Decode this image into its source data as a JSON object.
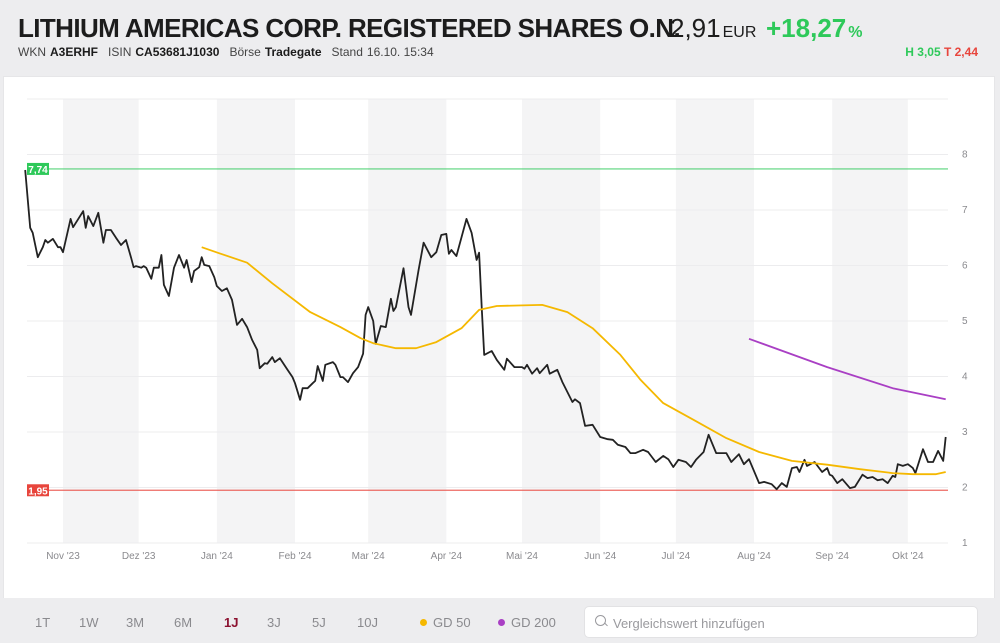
{
  "header": {
    "title": "LITHIUM AMERICAS CORP. REGISTERED SHARES O.N.",
    "price": "2,91",
    "currency": "EUR",
    "change": "+18,27",
    "change_unit": "%",
    "wkn_label": "WKN",
    "wkn": "A3ERHF",
    "isin_label": "ISIN",
    "isin": "CA53681J1030",
    "exchange_label": "Börse",
    "exchange": "Tradegate",
    "timestamp_label": "Stand",
    "timestamp": "16.10. 15:34",
    "high": "H 3,05",
    "low": "T 2,44"
  },
  "colors": {
    "up": "#2ec95a",
    "down": "#e8453c",
    "price_line": "#222222",
    "gd50": "#f5b800",
    "gd200": "#a93fc4",
    "active_range": "#8c1230"
  },
  "chart_data": {
    "type": "line",
    "x_type": "date",
    "xlim": [
      "2023-10-16",
      "2024-10-16"
    ],
    "ylim": [
      1,
      9
    ],
    "y_ticks": [
      "1",
      "2",
      "3",
      "4",
      "5",
      "6",
      "7",
      "8"
    ],
    "x_ticks": [
      {
        "date": "2023-11-01",
        "label": "Nov '23"
      },
      {
        "date": "2023-12-01",
        "label": "Dez '23"
      },
      {
        "date": "2024-01-01",
        "label": "Jan '24"
      },
      {
        "date": "2024-02-01",
        "label": "Feb '24"
      },
      {
        "date": "2024-03-01",
        "label": "Mar '24"
      },
      {
        "date": "2024-04-01",
        "label": "Apr '24"
      },
      {
        "date": "2024-05-01",
        "label": "Mai '24"
      },
      {
        "date": "2024-06-01",
        "label": "Jun '24"
      },
      {
        "date": "2024-07-01",
        "label": "Jul '24"
      },
      {
        "date": "2024-08-01",
        "label": "Aug '24"
      },
      {
        "date": "2024-09-01",
        "label": "Sep '24"
      },
      {
        "date": "2024-10-01",
        "label": "Okt '24"
      }
    ],
    "grid": true,
    "max_marker": {
      "value": 7.74,
      "label": "7,74"
    },
    "min_marker": {
      "value": 1.95,
      "label": "1,95"
    },
    "series": [
      {
        "key": "price",
        "points": [
          [
            "2023-10-17",
            7.72
          ],
          [
            "2023-10-19",
            6.68
          ],
          [
            "2023-10-20",
            6.59
          ],
          [
            "2023-10-22",
            6.15
          ],
          [
            "2023-10-24",
            6.33
          ],
          [
            "2023-10-25",
            6.46
          ],
          [
            "2023-10-26",
            6.41
          ],
          [
            "2023-10-28",
            6.48
          ],
          [
            "2023-10-30",
            6.33
          ],
          [
            "2023-10-31",
            6.33
          ],
          [
            "2023-11-01",
            6.24
          ],
          [
            "2023-11-04",
            6.84
          ],
          [
            "2023-11-05",
            6.69
          ],
          [
            "2023-11-09",
            6.98
          ],
          [
            "2023-11-10",
            6.68
          ],
          [
            "2023-11-11",
            6.89
          ],
          [
            "2023-11-13",
            6.71
          ],
          [
            "2023-11-15",
            6.95
          ],
          [
            "2023-11-17",
            6.41
          ],
          [
            "2023-11-18",
            6.64
          ],
          [
            "2023-11-20",
            6.64
          ],
          [
            "2023-11-22",
            6.5
          ],
          [
            "2023-11-24",
            6.37
          ],
          [
            "2023-11-26",
            6.46
          ],
          [
            "2023-11-28",
            6.14
          ],
          [
            "2023-11-29",
            5.97
          ],
          [
            "2023-11-30",
            5.99
          ],
          [
            "2023-12-02",
            5.96
          ],
          [
            "2023-12-03",
            5.99
          ],
          [
            "2023-12-04",
            5.96
          ],
          [
            "2023-12-06",
            5.76
          ],
          [
            "2023-12-07",
            5.96
          ],
          [
            "2023-12-09",
            5.96
          ],
          [
            "2023-12-10",
            6.19
          ],
          [
            "2023-12-11",
            5.65
          ],
          [
            "2023-12-13",
            5.45
          ],
          [
            "2023-12-15",
            5.96
          ],
          [
            "2023-12-17",
            6.19
          ],
          [
            "2023-12-19",
            5.96
          ],
          [
            "2023-12-20",
            6.1
          ],
          [
            "2023-12-22",
            5.7
          ],
          [
            "2023-12-23",
            5.9
          ],
          [
            "2023-12-25",
            5.97
          ],
          [
            "2023-12-26",
            6.15
          ],
          [
            "2023-12-27",
            6.01
          ],
          [
            "2023-12-29",
            5.99
          ],
          [
            "2023-12-31",
            5.79
          ],
          [
            "2024-01-01",
            5.63
          ],
          [
            "2024-01-03",
            5.54
          ],
          [
            "2024-01-05",
            5.59
          ],
          [
            "2024-01-07",
            5.38
          ],
          [
            "2024-01-09",
            4.93
          ],
          [
            "2024-01-11",
            5.04
          ],
          [
            "2024-01-13",
            4.89
          ],
          [
            "2024-01-15",
            4.66
          ],
          [
            "2024-01-17",
            4.48
          ],
          [
            "2024-01-18",
            4.15
          ],
          [
            "2024-01-20",
            4.24
          ],
          [
            "2024-01-21",
            4.23
          ],
          [
            "2024-01-23",
            4.35
          ],
          [
            "2024-01-24",
            4.26
          ],
          [
            "2024-01-26",
            4.33
          ],
          [
            "2024-01-29",
            4.12
          ],
          [
            "2024-01-31",
            3.99
          ],
          [
            "2024-02-01",
            3.88
          ],
          [
            "2024-02-03",
            3.58
          ],
          [
            "2024-02-04",
            3.79
          ],
          [
            "2024-02-06",
            3.79
          ],
          [
            "2024-02-08",
            3.88
          ],
          [
            "2024-02-09",
            3.92
          ],
          [
            "2024-02-10",
            4.19
          ],
          [
            "2024-02-12",
            3.92
          ],
          [
            "2024-02-13",
            4.21
          ],
          [
            "2024-02-16",
            4.26
          ],
          [
            "2024-02-17",
            4.21
          ],
          [
            "2024-02-19",
            3.99
          ],
          [
            "2024-02-20",
            3.99
          ],
          [
            "2024-02-22",
            3.9
          ],
          [
            "2024-02-24",
            4.06
          ],
          [
            "2024-02-26",
            4.17
          ],
          [
            "2024-02-28",
            4.41
          ],
          [
            "2024-02-29",
            5.11
          ],
          [
            "2024-03-01",
            5.25
          ],
          [
            "2024-03-03",
            5.0
          ],
          [
            "2024-03-04",
            4.59
          ],
          [
            "2024-03-06",
            4.91
          ],
          [
            "2024-03-08",
            4.89
          ],
          [
            "2024-03-10",
            5.4
          ],
          [
            "2024-03-11",
            5.18
          ],
          [
            "2024-03-12",
            5.25
          ],
          [
            "2024-03-15",
            5.95
          ],
          [
            "2024-03-17",
            5.25
          ],
          [
            "2024-03-18",
            5.11
          ],
          [
            "2024-03-21",
            5.92
          ],
          [
            "2024-03-23",
            6.41
          ],
          [
            "2024-03-26",
            6.15
          ],
          [
            "2024-03-28",
            6.24
          ],
          [
            "2024-03-30",
            6.55
          ],
          [
            "2024-04-01",
            6.57
          ],
          [
            "2024-04-02",
            6.21
          ],
          [
            "2024-04-03",
            6.28
          ],
          [
            "2024-04-05",
            6.17
          ],
          [
            "2024-04-09",
            6.84
          ],
          [
            "2024-04-11",
            6.59
          ],
          [
            "2024-04-13",
            6.1
          ],
          [
            "2024-04-14",
            6.23
          ],
          [
            "2024-04-15",
            5.25
          ],
          [
            "2024-04-16",
            4.39
          ],
          [
            "2024-04-19",
            4.46
          ],
          [
            "2024-04-21",
            4.3
          ],
          [
            "2024-04-24",
            4.12
          ],
          [
            "2024-04-25",
            4.32
          ],
          [
            "2024-04-28",
            4.17
          ],
          [
            "2024-05-01",
            4.17
          ],
          [
            "2024-05-02",
            4.14
          ],
          [
            "2024-05-03",
            4.21
          ],
          [
            "2024-05-05",
            4.05
          ],
          [
            "2024-05-07",
            4.15
          ],
          [
            "2024-05-08",
            4.06
          ],
          [
            "2024-05-11",
            4.21
          ],
          [
            "2024-05-12",
            4.05
          ],
          [
            "2024-05-15",
            4.12
          ],
          [
            "2024-05-17",
            3.9
          ],
          [
            "2024-05-21",
            3.54
          ],
          [
            "2024-05-22",
            3.59
          ],
          [
            "2024-05-24",
            3.52
          ],
          [
            "2024-05-26",
            3.11
          ],
          [
            "2024-05-29",
            3.13
          ],
          [
            "2024-06-01",
            2.91
          ],
          [
            "2024-06-04",
            2.87
          ],
          [
            "2024-06-06",
            2.86
          ],
          [
            "2024-06-08",
            2.77
          ],
          [
            "2024-06-11",
            2.73
          ],
          [
            "2024-06-13",
            2.62
          ],
          [
            "2024-06-15",
            2.62
          ],
          [
            "2024-06-18",
            2.68
          ],
          [
            "2024-06-20",
            2.64
          ],
          [
            "2024-06-23",
            2.46
          ],
          [
            "2024-06-26",
            2.57
          ],
          [
            "2024-06-28",
            2.51
          ],
          [
            "2024-06-30",
            2.37
          ],
          [
            "2024-07-02",
            2.5
          ],
          [
            "2024-07-05",
            2.46
          ],
          [
            "2024-07-07",
            2.37
          ],
          [
            "2024-07-09",
            2.5
          ],
          [
            "2024-07-12",
            2.64
          ],
          [
            "2024-07-14",
            2.95
          ],
          [
            "2024-07-17",
            2.62
          ],
          [
            "2024-07-21",
            2.62
          ],
          [
            "2024-07-23",
            2.46
          ],
          [
            "2024-07-26",
            2.6
          ],
          [
            "2024-07-28",
            2.42
          ],
          [
            "2024-07-30",
            2.51
          ],
          [
            "2024-08-03",
            2.08
          ],
          [
            "2024-08-05",
            2.1
          ],
          [
            "2024-08-08",
            2.06
          ],
          [
            "2024-08-10",
            1.97
          ],
          [
            "2024-08-12",
            2.08
          ],
          [
            "2024-08-14",
            2.01
          ],
          [
            "2024-08-16",
            2.35
          ],
          [
            "2024-08-18",
            2.37
          ],
          [
            "2024-08-19",
            2.28
          ],
          [
            "2024-08-21",
            2.5
          ],
          [
            "2024-08-22",
            2.39
          ],
          [
            "2024-08-25",
            2.46
          ],
          [
            "2024-08-28",
            2.28
          ],
          [
            "2024-08-30",
            2.35
          ],
          [
            "2024-08-31",
            2.23
          ],
          [
            "2024-09-01",
            2.21
          ],
          [
            "2024-09-03",
            2.08
          ],
          [
            "2024-09-05",
            2.15
          ],
          [
            "2024-09-08",
            1.99
          ],
          [
            "2024-09-10",
            2.01
          ],
          [
            "2024-09-13",
            2.23
          ],
          [
            "2024-09-15",
            2.17
          ],
          [
            "2024-09-17",
            2.19
          ],
          [
            "2024-09-19",
            2.13
          ],
          [
            "2024-09-21",
            2.15
          ],
          [
            "2024-09-23",
            2.08
          ],
          [
            "2024-09-25",
            2.21
          ],
          [
            "2024-09-26",
            2.19
          ],
          [
            "2024-09-27",
            2.42
          ],
          [
            "2024-09-29",
            2.39
          ],
          [
            "2024-10-01",
            2.42
          ],
          [
            "2024-10-03",
            2.35
          ],
          [
            "2024-10-04",
            2.26
          ],
          [
            "2024-10-07",
            2.69
          ],
          [
            "2024-10-09",
            2.46
          ],
          [
            "2024-10-11",
            2.46
          ],
          [
            "2024-10-13",
            2.66
          ],
          [
            "2024-10-15",
            2.48
          ],
          [
            "2024-10-16",
            2.91
          ]
        ]
      },
      {
        "key": "gd50",
        "name": "GD 50",
        "points": [
          [
            "2023-12-26",
            6.33
          ],
          [
            "2024-01-02",
            6.22
          ],
          [
            "2024-01-13",
            6.05
          ],
          [
            "2024-01-23",
            5.68
          ],
          [
            "2024-02-07",
            5.16
          ],
          [
            "2024-02-19",
            4.89
          ],
          [
            "2024-02-27",
            4.69
          ],
          [
            "2024-03-03",
            4.6
          ],
          [
            "2024-03-12",
            4.51
          ],
          [
            "2024-03-20",
            4.51
          ],
          [
            "2024-03-28",
            4.62
          ],
          [
            "2024-04-07",
            4.87
          ],
          [
            "2024-04-14",
            5.2
          ],
          [
            "2024-04-21",
            5.27
          ],
          [
            "2024-05-09",
            5.29
          ],
          [
            "2024-05-19",
            5.16
          ],
          [
            "2024-05-29",
            4.87
          ],
          [
            "2024-06-09",
            4.39
          ],
          [
            "2024-06-17",
            3.94
          ],
          [
            "2024-06-26",
            3.52
          ],
          [
            "2024-07-08",
            3.22
          ],
          [
            "2024-07-21",
            2.89
          ],
          [
            "2024-08-03",
            2.64
          ],
          [
            "2024-08-16",
            2.48
          ],
          [
            "2024-08-30",
            2.41
          ],
          [
            "2024-09-12",
            2.33
          ],
          [
            "2024-09-25",
            2.26
          ],
          [
            "2024-10-03",
            2.24
          ],
          [
            "2024-10-12",
            2.24
          ],
          [
            "2024-10-16",
            2.28
          ]
        ]
      },
      {
        "key": "gd200",
        "name": "GD 200",
        "points": [
          [
            "2024-07-30",
            4.68
          ],
          [
            "2024-08-30",
            4.17
          ],
          [
            "2024-09-25",
            3.79
          ],
          [
            "2024-10-16",
            3.59
          ]
        ]
      }
    ]
  },
  "footer": {
    "ranges": [
      {
        "label": "1T",
        "active": false
      },
      {
        "label": "1W",
        "active": false
      },
      {
        "label": "3M",
        "active": false
      },
      {
        "label": "6M",
        "active": false
      },
      {
        "label": "1J",
        "active": true
      },
      {
        "label": "3J",
        "active": false
      },
      {
        "label": "5J",
        "active": false
      },
      {
        "label": "10J",
        "active": false
      }
    ],
    "gd50_label": "GD 50",
    "gd200_label": "GD 200",
    "search_placeholder": "Vergleichswert hinzufügen",
    "search_value": ""
  }
}
